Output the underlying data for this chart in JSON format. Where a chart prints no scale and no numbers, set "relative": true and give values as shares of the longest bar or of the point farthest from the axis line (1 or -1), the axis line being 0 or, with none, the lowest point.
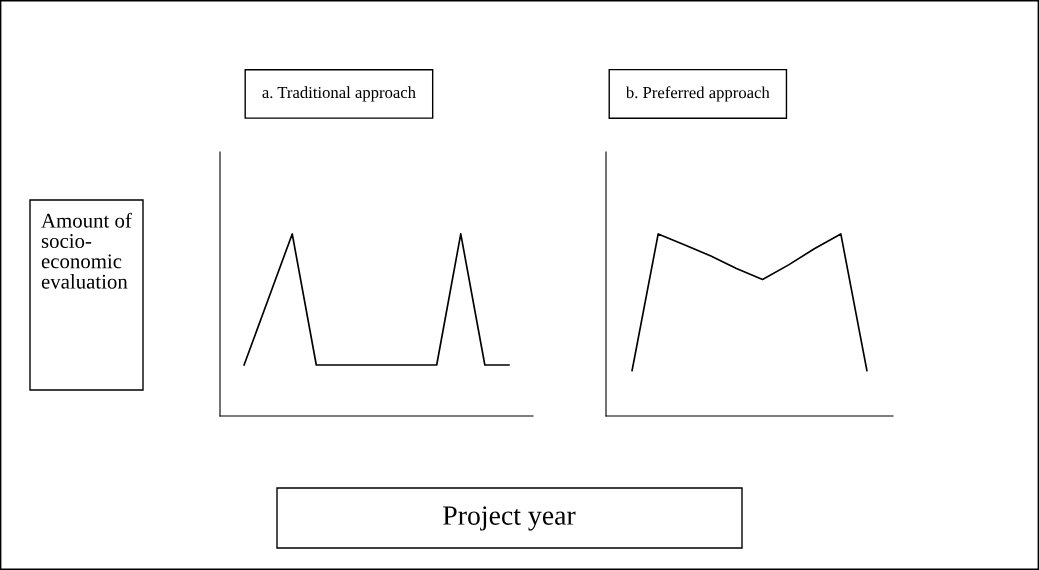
{
  "chart_data": [
    {
      "type": "line",
      "title": "a. Traditional approach",
      "ylabel": "Amount of\nsocio-\neconomic\nevaluation",
      "relative": true,
      "grid": false,
      "legend": false,
      "marker": "none",
      "line_style": "solid",
      "categories": [
        null,
        null,
        null,
        null,
        null,
        null,
        null,
        null,
        null,
        null,
        null,
        null
      ],
      "series": [
        {
          "color": "#000000",
          "values": [
            0.28,
            0.64,
            1,
            0.28,
            0.28,
            0.28,
            0.28,
            0.28,
            0.28,
            1,
            0.28,
            0.28
          ]
        }
      ]
    },
    {
      "type": "line",
      "title": "b. Preferred approach",
      "xlabel": "Project year",
      "relative": true,
      "grid": false,
      "legend": false,
      "marker": "none",
      "line_style": "solid",
      "categories": [
        null,
        null,
        null,
        null,
        null,
        null,
        null,
        null,
        null,
        null
      ],
      "series": [
        {
          "color": "#000000",
          "values": [
            0.25,
            1,
            0.94,
            0.88,
            0.81,
            0.75,
            0.83,
            0.92,
            1,
            0.25
          ]
        }
      ]
    }
  ]
}
